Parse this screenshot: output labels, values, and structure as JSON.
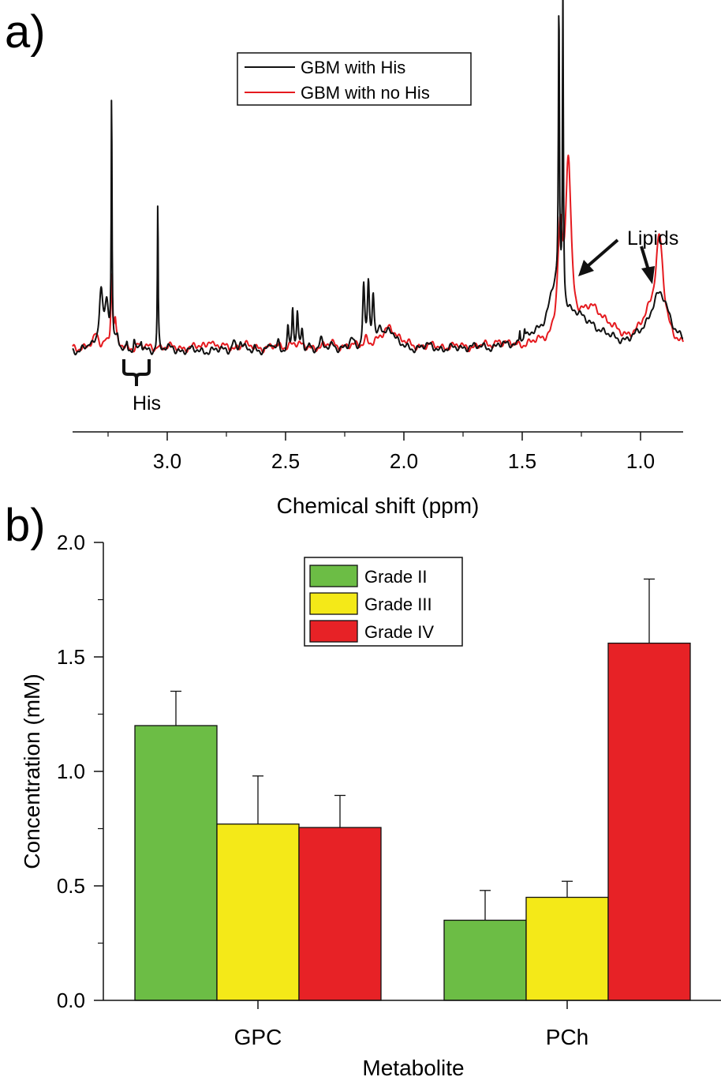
{
  "chart_data": [
    {
      "panel_label": "a)",
      "type": "line",
      "xlabel": "Chemical shift (ppm)",
      "xlim": [
        3.4,
        0.82
      ],
      "x_reversed": true,
      "xticks": [
        3.0,
        2.5,
        2.0,
        1.5,
        1.0
      ],
      "xtick_labels": [
        "3.0",
        "2.5",
        "2.0",
        "1.5",
        "1.0"
      ],
      "y_axis_shown": false,
      "legend": {
        "placement": "top-center",
        "entries": [
          "GBM with His",
          "GBM with no His"
        ]
      },
      "series": [
        {
          "name": "GBM with His",
          "color": "#111111",
          "baseline": 1.0,
          "peaks": [
            [
              3.33,
              0.6,
              0.006
            ],
            [
              3.28,
              9.5,
              0.01
            ],
            [
              3.255,
              7.0,
              0.01
            ],
            [
              3.235,
              41.5,
              0.002
            ],
            [
              3.21,
              2.0,
              0.005
            ],
            [
              3.17,
              1.5,
              0.003
            ],
            [
              3.14,
              1.5,
              0.003
            ],
            [
              3.11,
              1.5,
              0.003
            ],
            [
              3.04,
              24.5,
              0.002
            ],
            [
              2.98,
              0.6,
              0.01
            ],
            [
              2.72,
              1.7,
              0.008
            ],
            [
              2.69,
              1.2,
              0.007
            ],
            [
              2.63,
              0.6,
              0.006
            ],
            [
              2.56,
              1.0,
              0.006
            ],
            [
              2.53,
              1.3,
              0.006
            ],
            [
              2.49,
              3.5,
              0.004
            ],
            [
              2.47,
              6.5,
              0.004
            ],
            [
              2.45,
              5.3,
              0.004
            ],
            [
              2.43,
              3.0,
              0.005
            ],
            [
              2.4,
              1.2,
              0.005
            ],
            [
              2.35,
              1.3,
              0.008
            ],
            [
              2.3,
              1.0,
              0.015
            ],
            [
              2.22,
              1.5,
              0.01
            ],
            [
              2.17,
              10.0,
              0.005
            ],
            [
              2.15,
              10.5,
              0.005
            ],
            [
              2.13,
              7.5,
              0.005
            ],
            [
              2.1,
              3.0,
              0.01
            ],
            [
              2.06,
              3.5,
              0.025
            ],
            [
              1.9,
              0.5,
              0.04
            ],
            [
              1.72,
              0.5,
              0.03
            ],
            [
              1.6,
              0.6,
              0.015
            ],
            [
              1.51,
              2.5,
              0.003
            ],
            [
              1.49,
              2.0,
              0.003
            ],
            [
              1.45,
              1.0,
              0.05
            ],
            [
              1.36,
              9.0,
              0.04
            ],
            [
              1.345,
              47.0,
              0.0025
            ],
            [
              1.328,
              51.0,
              0.0022
            ],
            [
              1.28,
              3.5,
              0.05
            ],
            [
              1.2,
              2.5,
              0.07
            ],
            [
              0.92,
              9.0,
              0.055
            ]
          ]
        },
        {
          "name": "GBM with no His",
          "color": "#e51a1f",
          "baseline": 1.5,
          "peaks": [
            [
              3.3,
              2.0,
              0.012
            ],
            [
              3.26,
              1.0,
              0.01
            ],
            [
              3.235,
              12.0,
              0.004
            ],
            [
              3.22,
              4.0,
              0.005
            ],
            [
              3.12,
              0.4,
              0.008
            ],
            [
              3.04,
              0.5,
              0.005
            ],
            [
              2.82,
              1.5,
              0.012
            ],
            [
              2.68,
              0.5,
              0.015
            ],
            [
              2.47,
              0.8,
              0.02
            ],
            [
              2.3,
              0.6,
              0.02
            ],
            [
              2.16,
              1.4,
              0.01
            ],
            [
              2.06,
              3.5,
              0.035
            ],
            [
              1.6,
              1.0,
              0.015
            ],
            [
              1.34,
              16.0,
              0.012
            ],
            [
              1.305,
              28.0,
              0.014
            ],
            [
              1.2,
              6.0,
              0.08
            ],
            [
              0.92,
              16.0,
              0.02
            ],
            [
              0.96,
              4.0,
              0.04
            ]
          ]
        }
      ],
      "annotations": [
        "Lipids",
        "His"
      ]
    },
    {
      "panel_label": "b)",
      "type": "bar",
      "xlabel": "Metabolite",
      "ylabel": "Concentration (mM)",
      "ylim": [
        0,
        2.0
      ],
      "yticks": [
        "0.0",
        "0.5",
        "1.0",
        "1.5",
        "2.0"
      ],
      "categories": [
        "GPC",
        "PCh"
      ],
      "legend": {
        "placement": "top-center"
      },
      "series": [
        {
          "name": "Grade II",
          "color": "#6cbd45",
          "values": [
            1.2,
            0.35
          ],
          "errors": [
            0.15,
            0.13
          ]
        },
        {
          "name": "Grade III",
          "color": "#f4e918",
          "values": [
            0.77,
            0.45
          ],
          "errors": [
            0.21,
            0.07
          ]
        },
        {
          "name": "Grade IV",
          "color": "#e72226",
          "values": [
            0.755,
            1.56
          ],
          "errors": [
            0.14,
            0.28
          ]
        }
      ]
    }
  ]
}
